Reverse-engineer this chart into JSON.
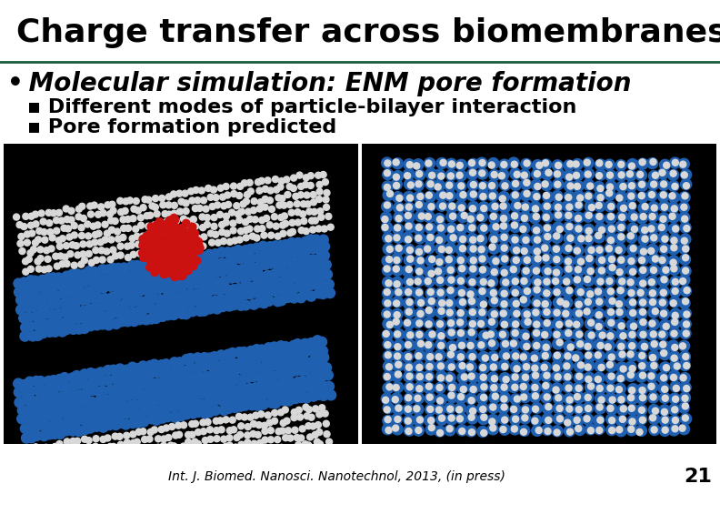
{
  "title": "Charge transfer across biomembranes",
  "title_fontsize": 26,
  "title_color": "#000000",
  "separator_color": "#1a5c3a",
  "separator_linewidth": 2.0,
  "bullet1_text": " Molecular simulation: ENM pore formation",
  "bullet1_fontsize": 20,
  "bullet1_color": "#000000",
  "sub_bullet1": "▪ Different modes of particle-bilayer interaction",
  "sub_bullet2": "▪ Pore formation predicted",
  "sub_bullet_fontsize": 16,
  "sub_bullet_color": "#000000",
  "caption": "Int. J. Biomed. Nanosci. Nanotechnol, 2013, (in press)",
  "caption_fontsize": 10,
  "caption_color": "#000000",
  "page_number": "21",
  "page_number_fontsize": 16,
  "page_number_color": "#000000",
  "fig_width": 7.92,
  "fig_height": 5.76,
  "dpi": 100,
  "bg_color": "#ffffff",
  "img_bg": "#000000",
  "blue_color": "#2060b0",
  "white_color": "#d8d8d8",
  "red_color": "#cc1111"
}
